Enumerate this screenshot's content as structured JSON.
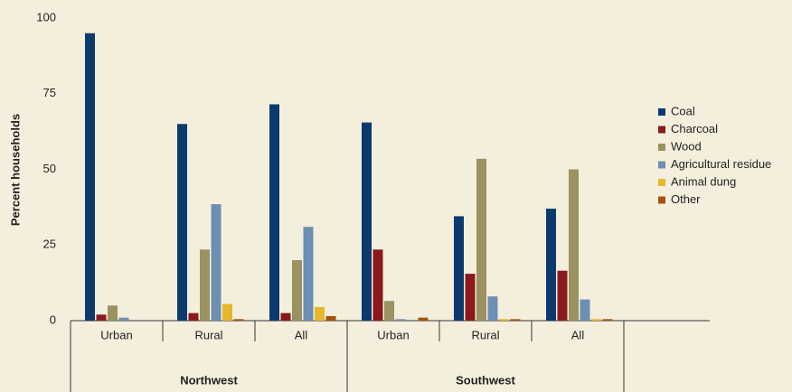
{
  "chart_data": {
    "type": "bar",
    "y_label": "Percent households",
    "categories": [
      "Urban",
      "Rural",
      "All",
      "Urban",
      "Rural",
      "All"
    ],
    "groups": [
      "Northwest",
      "Southwest"
    ],
    "series": [
      {
        "name": "Coal",
        "color": "#0b3a6f",
        "values": [
          95,
          65,
          71.5,
          65.5,
          34.5,
          37
        ]
      },
      {
        "name": "Charcoal",
        "color": "#8a1a1b",
        "values": [
          2,
          2.5,
          2.5,
          23.5,
          15.5,
          16.5
        ]
      },
      {
        "name": "Wood",
        "color": "#9b9262",
        "values": [
          5,
          23.5,
          20,
          6.5,
          53.5,
          50
        ]
      },
      {
        "name": "Agricultural residue",
        "color": "#6e8fb4",
        "values": [
          1,
          38.5,
          31,
          0.5,
          8,
          7
        ]
      },
      {
        "name": "Animal dung",
        "color": "#e6b62b",
        "values": [
          0,
          5.5,
          4.5,
          0,
          0.5,
          0.5
        ]
      },
      {
        "name": "Other",
        "color": "#a3540f",
        "values": [
          0,
          0.5,
          1.5,
          1,
          0.5,
          0.5
        ]
      }
    ],
    "ylim": [
      0,
      100
    ],
    "yticks": [
      0,
      25,
      50,
      75,
      100
    ],
    "grid": false,
    "legend": "right"
  }
}
